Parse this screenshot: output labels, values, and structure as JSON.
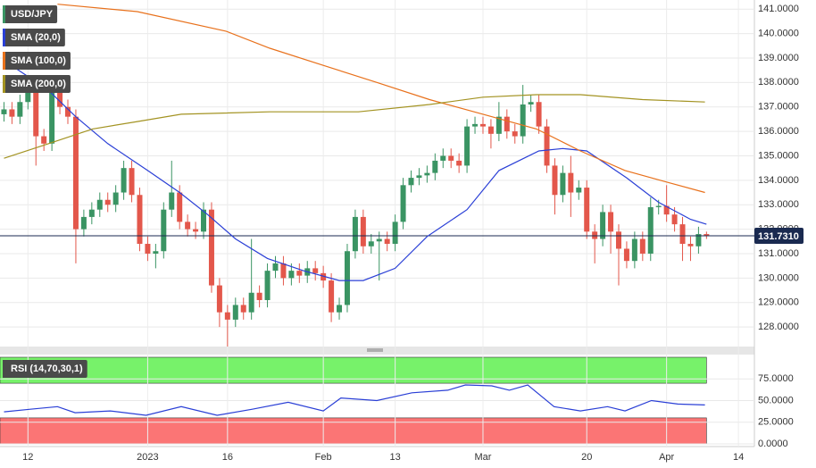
{
  "chart_data": [
    {
      "type": "candlestick",
      "symbol": "USD/JPY",
      "up_color": "#3a9463",
      "down_color": "#e3574b",
      "xlim": [
        -3.5,
        91
      ],
      "ylim": [
        127.2,
        141.3
      ],
      "yticks": [
        {
          "value": 141,
          "label": "141.0000"
        },
        {
          "value": 140,
          "label": "140.0000"
        },
        {
          "value": 139,
          "label": "139.0000"
        },
        {
          "value": 138,
          "label": "138.0000"
        },
        {
          "value": 137,
          "label": "137.0000"
        },
        {
          "value": 136,
          "label": "136.0000"
        },
        {
          "value": 135,
          "label": "135.0000"
        },
        {
          "value": 134,
          "label": "134.0000"
        },
        {
          "value": 133,
          "label": "133.0000"
        },
        {
          "value": 132,
          "label": "132.0000"
        },
        {
          "value": 131,
          "label": "131.0000"
        },
        {
          "value": 130,
          "label": "130.0000"
        },
        {
          "value": 129,
          "label": "129.0000"
        },
        {
          "value": 128,
          "label": "128.0000"
        }
      ],
      "grid": true,
      "last_price": {
        "value": 131.731,
        "label": "131.7310",
        "color": "#1a2a50"
      },
      "candles": {
        "x": [
          -3,
          -2,
          -1,
          0,
          1,
          2,
          3,
          4,
          5,
          6,
          7,
          8,
          9,
          10,
          11,
          12,
          13,
          14,
          15,
          16,
          17,
          18,
          19,
          20,
          21,
          22,
          23,
          24,
          25,
          26,
          27,
          28,
          29,
          30,
          31,
          32,
          33,
          34,
          35,
          36,
          37,
          38,
          39,
          40,
          41,
          42,
          43,
          44,
          45,
          46,
          47,
          48,
          49,
          50,
          51,
          52,
          53,
          54,
          55,
          56,
          57,
          58,
          59,
          60,
          61,
          62,
          63,
          64,
          65,
          66,
          67,
          68,
          69,
          70,
          71,
          72,
          73,
          74,
          75,
          76,
          77,
          78,
          79,
          80,
          81,
          82,
          83,
          84,
          85
        ],
        "open": [
          136.7,
          136.9,
          136.6,
          137.2,
          137.6,
          135.8,
          135.5,
          137.8,
          137.0,
          136.6,
          132.0,
          132.5,
          132.8,
          133.2,
          133.0,
          133.5,
          134.5,
          133.4,
          131.4,
          131.0,
          131.1,
          132.8,
          133.5,
          132.3,
          132.0,
          131.9,
          132.8,
          129.7,
          128.6,
          128.3,
          128.9,
          128.6,
          129.4,
          129.1,
          130.3,
          130.6,
          130.0,
          130.3,
          130.1,
          130.4,
          130.2,
          129.9,
          128.6,
          128.9,
          131.1,
          132.5,
          131.3,
          131.5,
          131.6,
          131.4,
          132.3,
          133.8,
          134.1,
          134.2,
          134.3,
          134.8,
          135.0,
          134.8,
          134.6,
          136.2,
          136.3,
          136.2,
          135.9,
          136.6,
          136.0,
          135.8,
          137.1,
          137.2,
          136.2,
          134.6,
          133.4,
          134.3,
          133.5,
          133.7,
          131.9,
          131.6,
          132.7,
          131.9,
          131.2,
          130.7,
          131.6,
          131.0,
          132.9,
          132.95,
          132.6,
          132.2,
          131.4,
          131.3,
          131.8
        ],
        "high": [
          137.2,
          137.2,
          137.5,
          137.9,
          137.9,
          136.1,
          138.2,
          138.1,
          137.3,
          136.9,
          132.8,
          133.1,
          133.5,
          133.5,
          133.8,
          134.8,
          134.8,
          133.7,
          131.7,
          131.4,
          133.1,
          134.8,
          133.8,
          132.6,
          132.3,
          133.1,
          133.1,
          130.0,
          128.9,
          129.2,
          129.2,
          131.6,
          129.7,
          130.6,
          130.9,
          130.9,
          130.6,
          130.6,
          130.7,
          130.7,
          130.5,
          130.2,
          129.2,
          131.4,
          132.8,
          132.8,
          131.8,
          131.9,
          131.9,
          132.6,
          134.1,
          134.4,
          134.5,
          134.6,
          135.1,
          135.3,
          135.3,
          135.1,
          136.5,
          136.6,
          136.6,
          136.5,
          137.2,
          136.9,
          136.3,
          137.9,
          137.5,
          137.5,
          136.5,
          134.9,
          134.6,
          135.0,
          134.0,
          134.0,
          132.2,
          133.0,
          133.0,
          132.2,
          131.5,
          131.9,
          131.9,
          133.3,
          133.2,
          133.8,
          132.9,
          132.5,
          131.7,
          132.1,
          131.9
        ],
        "low": [
          136.4,
          136.3,
          136.3,
          136.9,
          134.6,
          135.2,
          135.2,
          136.7,
          136.3,
          130.6,
          131.7,
          132.2,
          132.5,
          132.7,
          132.7,
          133.2,
          133.1,
          131.1,
          130.7,
          130.4,
          130.8,
          132.5,
          132.0,
          131.7,
          131.6,
          131.6,
          129.4,
          128.0,
          127.2,
          128.0,
          128.3,
          128.3,
          128.8,
          128.8,
          130.0,
          129.7,
          129.7,
          129.8,
          129.8,
          129.9,
          129.6,
          128.2,
          128.3,
          128.6,
          130.8,
          131.0,
          131.0,
          129.9,
          131.1,
          131.1,
          132.0,
          133.5,
          133.8,
          133.9,
          134.0,
          134.5,
          134.5,
          134.3,
          134.3,
          135.9,
          135.9,
          135.3,
          135.6,
          135.7,
          135.5,
          135.5,
          136.8,
          135.9,
          134.3,
          132.6,
          133.1,
          132.5,
          133.2,
          131.6,
          130.6,
          131.3,
          131.0,
          129.7,
          130.4,
          130.4,
          130.7,
          130.7,
          132.6,
          132.3,
          131.9,
          130.7,
          130.7,
          131.0,
          131.6
        ],
        "close": [
          136.9,
          136.6,
          137.2,
          137.6,
          135.8,
          135.5,
          137.8,
          137.0,
          136.6,
          132.0,
          132.5,
          132.8,
          133.2,
          133.0,
          133.5,
          134.5,
          133.4,
          131.4,
          131.0,
          131.1,
          132.8,
          133.5,
          132.3,
          132.0,
          131.9,
          132.8,
          129.7,
          128.6,
          128.3,
          128.9,
          128.6,
          129.4,
          129.1,
          130.3,
          130.6,
          130.0,
          130.3,
          130.1,
          130.4,
          130.2,
          129.9,
          128.6,
          128.9,
          131.1,
          132.5,
          131.3,
          131.5,
          131.6,
          131.4,
          132.3,
          133.8,
          134.1,
          134.2,
          134.3,
          134.8,
          135.0,
          134.8,
          134.6,
          136.2,
          136.3,
          136.2,
          135.9,
          136.6,
          136.0,
          135.8,
          137.1,
          137.2,
          136.2,
          134.6,
          133.4,
          134.3,
          133.5,
          133.7,
          131.9,
          131.6,
          132.7,
          131.9,
          131.2,
          130.7,
          131.6,
          131.0,
          132.9,
          132.95,
          132.6,
          132.2,
          131.4,
          131.3,
          131.8,
          131.731
        ]
      },
      "series": [
        {
          "name": "SMA (20,0)",
          "color": "#2a3fd6",
          "x": [
            -3,
            2.5,
            6,
            10,
            15,
            19,
            22.5,
            26,
            30,
            34.5,
            39,
            42,
            46,
            50,
            55,
            59,
            64,
            67,
            70,
            75,
            79,
            83,
            85
          ],
          "values": [
            138.9,
            137.7,
            136.6,
            135.5,
            134.4,
            133.5,
            132.6,
            131.6,
            130.8,
            130.3,
            129.9,
            129.9,
            130.4,
            131.7,
            132.8,
            134.4,
            135.2,
            135.3,
            135.2,
            134.1,
            133.1,
            132.4,
            132.2
          ]
        },
        {
          "name": "SMA (100,0)",
          "color": "#e8711c",
          "x": [
            3.7,
            13.7,
            24.8,
            30.3,
            37,
            43.7,
            50.3,
            57,
            63.7,
            69.2,
            74.8,
            80.3,
            84.8
          ],
          "values": [
            141.2,
            140.9,
            140.1,
            139.4,
            138.7,
            138.0,
            137.3,
            136.7,
            136.1,
            135.2,
            134.4,
            133.9,
            133.5
          ]
        },
        {
          "name": "SMA (200,0)",
          "color": "#a39322",
          "x": [
            -3,
            2.6,
            8.1,
            13.7,
            19.2,
            30.3,
            41.4,
            50.3,
            57,
            63.7,
            69.2,
            77,
            84.8
          ],
          "values": [
            134.9,
            135.5,
            136.1,
            136.4,
            136.7,
            136.8,
            136.8,
            137.1,
            137.4,
            137.5,
            137.5,
            137.3,
            137.2
          ]
        }
      ]
    },
    {
      "type": "line",
      "title": "RSI (14,70,30,1)",
      "xlim": [
        -3.5,
        91
      ],
      "ylim": [
        0,
        100
      ],
      "xticks": [
        {
          "value": 0,
          "label": "12"
        },
        {
          "value": 15,
          "label": "2023"
        },
        {
          "value": 25,
          "label": "16"
        },
        {
          "value": 37,
          "label": "Feb"
        },
        {
          "value": 46,
          "label": "13"
        },
        {
          "value": 57,
          "label": "Mar"
        },
        {
          "value": 70,
          "label": "20"
        },
        {
          "value": 80,
          "label": "Apr"
        },
        {
          "value": 89,
          "label": "14"
        }
      ],
      "yticks": [
        {
          "value": 75,
          "label": "75.0000"
        },
        {
          "value": 50,
          "label": "50.0000"
        },
        {
          "value": 25,
          "label": "25.0000"
        },
        {
          "value": 0,
          "label": "0.0000"
        }
      ],
      "zones": [
        {
          "from": 70,
          "to": 100,
          "color": "#77f26a"
        },
        {
          "from": 0,
          "to": 30,
          "color": "#fb7575"
        }
      ],
      "series": [
        {
          "color": "#2a3fd6",
          "x": [
            -3,
            0.3,
            3.7,
            5.9,
            10.3,
            14.8,
            19.2,
            23.7,
            28.1,
            32.6,
            37,
            39.2,
            43.7,
            48.1,
            52.6,
            54.8,
            58.1,
            60.3,
            62.6,
            65.9,
            69.2,
            72.6,
            74.8,
            78.1,
            81.4,
            84.8
          ],
          "values": [
            37,
            40,
            43,
            36,
            38,
            33,
            43,
            33,
            40,
            48,
            38,
            53,
            50,
            59,
            62,
            68,
            67,
            62,
            68,
            43,
            38,
            43,
            38,
            50,
            46,
            45
          ]
        }
      ]
    }
  ]
}
